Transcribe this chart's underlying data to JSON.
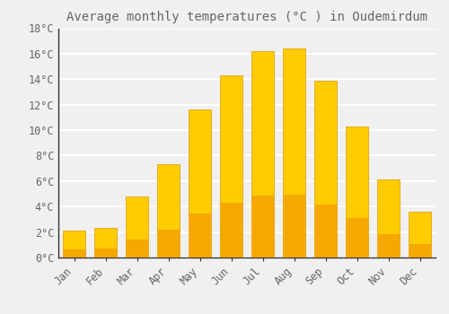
{
  "title": "Average monthly temperatures (°C ) in Oudemirdum",
  "months": [
    "Jan",
    "Feb",
    "Mar",
    "Apr",
    "May",
    "Jun",
    "Jul",
    "Aug",
    "Sep",
    "Oct",
    "Nov",
    "Dec"
  ],
  "values": [
    2.1,
    2.3,
    4.8,
    7.3,
    11.6,
    14.3,
    16.2,
    16.4,
    13.9,
    10.3,
    6.1,
    3.6
  ],
  "bar_color_top": "#FFCC00",
  "bar_color_bottom": "#F5A800",
  "bar_edge_color": "#E09800",
  "background_color": "#F0F0F0",
  "grid_color": "#FFFFFF",
  "text_color": "#666666",
  "spine_color": "#333333",
  "ylim": [
    0,
    18
  ],
  "yticks": [
    0,
    2,
    4,
    6,
    8,
    10,
    12,
    14,
    16,
    18
  ],
  "ytick_labels": [
    "0°C",
    "2°C",
    "4°C",
    "6°C",
    "8°C",
    "10°C",
    "12°C",
    "14°C",
    "16°C",
    "18°C"
  ],
  "title_fontsize": 10,
  "tick_fontsize": 8.5,
  "bar_width": 0.7
}
